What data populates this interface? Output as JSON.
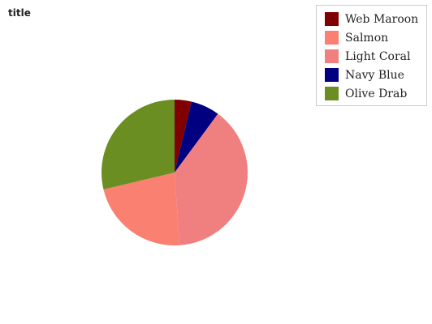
{
  "chart_data": {
    "type": "pie",
    "title": "title",
    "slices": [
      {
        "label": "Web Maroon",
        "value": 3.5,
        "color": "#800000"
      },
      {
        "label": "Salmon",
        "value": 21,
        "color": "#fa8072"
      },
      {
        "label": "Light Coral",
        "value": 36.5,
        "color": "#f08080"
      },
      {
        "label": "Navy Blue",
        "value": 6,
        "color": "#000080"
      },
      {
        "label": "Olive Drab",
        "value": 27,
        "color": "#6b8e23"
      }
    ],
    "slice_order": [
      "Web Maroon",
      "Navy Blue",
      "Light Coral",
      "Salmon",
      "Olive Drab"
    ],
    "legend_position": "top-right"
  }
}
